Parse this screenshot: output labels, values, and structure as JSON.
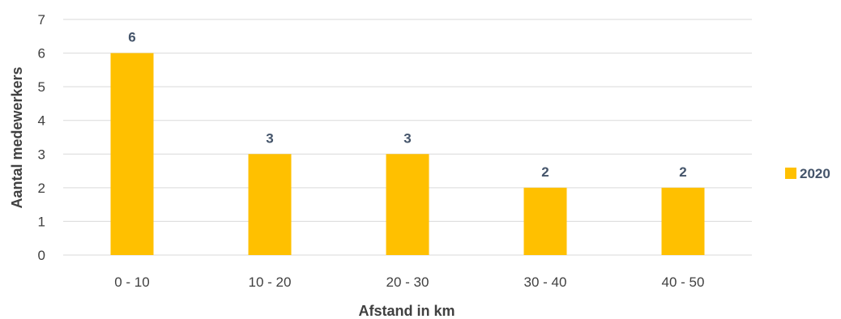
{
  "chart_data": {
    "type": "bar",
    "categories": [
      "0 - 10",
      "10 - 20",
      "20 - 30",
      "30 - 40",
      "40 - 50"
    ],
    "series": [
      {
        "name": "2020",
        "values": [
          6,
          3,
          3,
          2,
          2
        ],
        "color": "#ffc000"
      }
    ],
    "xlabel": "Afstand in km",
    "ylabel": "Aantal medewerkers",
    "ylim": [
      0,
      7
    ],
    "yticks": [
      0,
      1,
      2,
      3,
      4,
      5,
      6,
      7
    ],
    "grid": true,
    "legend": "right",
    "data_labels": true
  }
}
